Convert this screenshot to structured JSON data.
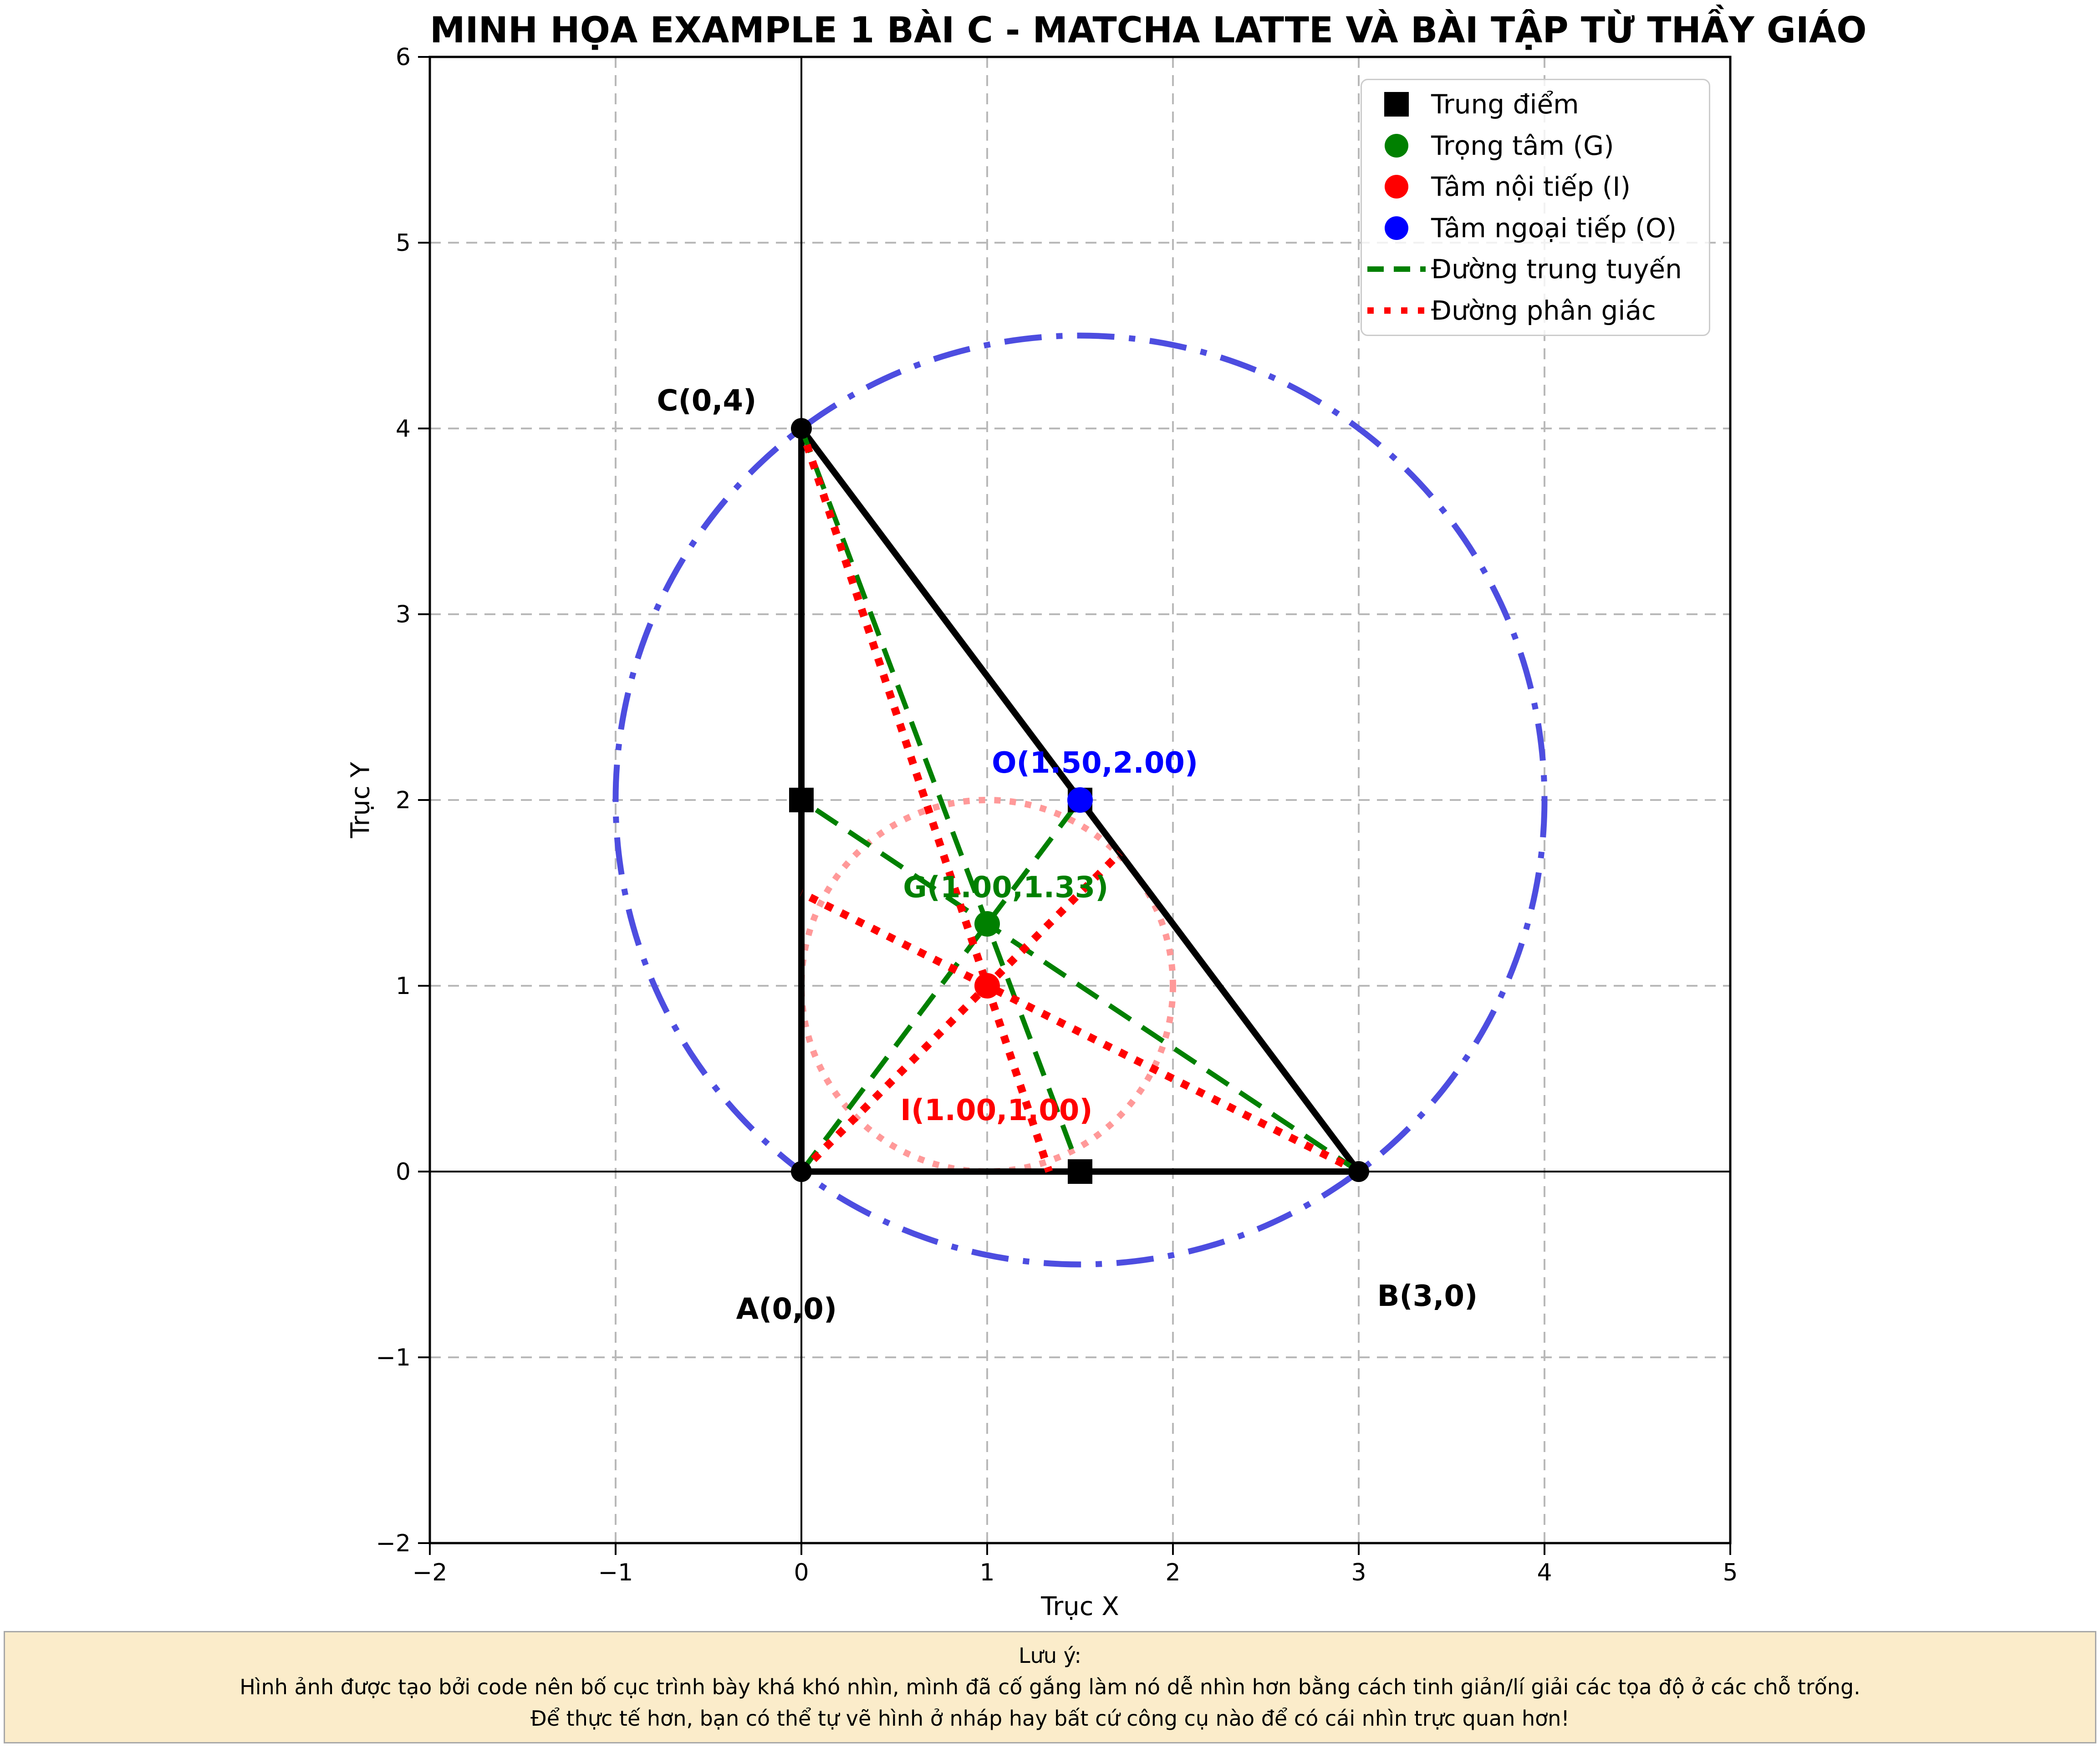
{
  "colors": {
    "black": "#000000",
    "green": "#008000",
    "red": "#ff0000",
    "blue": "#0000ff",
    "circumcircle_blue": "#4d4de0",
    "incircle_pink": "#ff9999",
    "grid": "#b9b9b9",
    "zero_axis": "#000000",
    "note_bg": "#fbecca",
    "note_border": "#a8a8a8",
    "legend_border": "#cccccc"
  },
  "legend": {
    "items": [
      {
        "label": "Trung điểm",
        "marker": "square",
        "color": "#000000"
      },
      {
        "label": "Trọng tâm (G)",
        "marker": "dot",
        "color": "#008000"
      },
      {
        "label": "Tâm nội tiếp (I)",
        "marker": "dot",
        "color": "#ff0000"
      },
      {
        "label": "Tâm ngoại tiếp (O)",
        "marker": "dot",
        "color": "#0000ff"
      },
      {
        "label": "Đường trung tuyến",
        "marker": "dashed-line",
        "color": "#008000"
      },
      {
        "label": "Đường phân giác",
        "marker": "dotted-line",
        "color": "#ff0000"
      }
    ]
  },
  "note": {
    "heading": "Lưu ý:",
    "line1": "Hình ảnh được tạo bởi code nên bố cục trình bày khá khó nhìn, mình đã cố gắng làm nó dễ nhìn hơn bằng cách tinh giản/lí giải các tọa độ ở các chỗ trống.",
    "line2": "Để thực tế hơn, bạn có thể tự vẽ hình ở nháp hay bất cứ công cụ nào để có cái nhìn trực quan hơn!"
  },
  "chart_data": {
    "type": "scatter",
    "title": "MINH HỌA EXAMPLE 1 BÀI C - MATCHA LATTE VÀ BÀI TẬP TỪ THẦY GIÁO",
    "xlabel": "Trục X",
    "ylabel": "Trục Y",
    "xlim": [
      -2,
      5
    ],
    "ylim": [
      -2,
      6
    ],
    "grid": true,
    "legend_position": "upper right",
    "xticks": [
      {
        "v": -2,
        "label": "−2"
      },
      {
        "v": -1,
        "label": "−1"
      },
      {
        "v": 0,
        "label": "0"
      },
      {
        "v": 1,
        "label": "1"
      },
      {
        "v": 2,
        "label": "2"
      },
      {
        "v": 3,
        "label": "3"
      },
      {
        "v": 4,
        "label": "4"
      },
      {
        "v": 5,
        "label": "5"
      }
    ],
    "yticks": [
      {
        "v": -2,
        "label": "−2"
      },
      {
        "v": -1,
        "label": "−1"
      },
      {
        "v": 0,
        "label": "0"
      },
      {
        "v": 1,
        "label": "1"
      },
      {
        "v": 2,
        "label": "2"
      },
      {
        "v": 3,
        "label": "3"
      },
      {
        "v": 4,
        "label": "4"
      },
      {
        "v": 5,
        "label": "5"
      },
      {
        "v": 6,
        "label": "6"
      }
    ],
    "triangle": {
      "vertices": [
        {
          "name": "A",
          "x": 0,
          "y": 0
        },
        {
          "name": "B",
          "x": 3,
          "y": 0
        },
        {
          "name": "C",
          "x": 0,
          "y": 4
        }
      ]
    },
    "vertex_labels": [
      {
        "text": "A(0,0)",
        "x": -0.08,
        "y": -0.75
      },
      {
        "text": "B(3,0)",
        "x": 3.37,
        "y": -0.68
      },
      {
        "text": "C(0,4)",
        "x": -0.51,
        "y": 4.14
      }
    ],
    "midpoints": [
      {
        "x": 1.5,
        "y": 2
      },
      {
        "x": 0,
        "y": 2
      },
      {
        "x": 1.5,
        "y": 0
      }
    ],
    "medians": [
      {
        "x1": 0,
        "y1": 0,
        "x2": 1.5,
        "y2": 2
      },
      {
        "x1": 3,
        "y1": 0,
        "x2": 0,
        "y2": 2
      },
      {
        "x1": 0,
        "y1": 4,
        "x2": 1.5,
        "y2": 0
      }
    ],
    "bisectors": [
      {
        "x1": 0,
        "y1": 0,
        "x2": 1.7143,
        "y2": 1.7143
      },
      {
        "x1": 3,
        "y1": 0,
        "x2": 0,
        "y2": 1.5
      },
      {
        "x1": 0,
        "y1": 4,
        "x2": 1.3333,
        "y2": 0
      }
    ],
    "centers": [
      {
        "name": "centroid",
        "x": 1.0,
        "y": 1.3333,
        "color_key": "green",
        "label": "G(1.00,1.33)",
        "label_x": 1.1,
        "label_y": 1.52
      },
      {
        "name": "incenter",
        "x": 1.0,
        "y": 1.0,
        "color_key": "red",
        "label": "I(1.00,1.00)",
        "label_x": 1.05,
        "label_y": 0.32
      },
      {
        "name": "circumcenter",
        "x": 1.5,
        "y": 2.0,
        "color_key": "blue",
        "label": "O(1.50,2.00)",
        "label_x": 1.58,
        "label_y": 2.19
      }
    ],
    "circumcircle": {
      "cx": 1.5,
      "cy": 2.0,
      "r": 2.5
    },
    "incircle": {
      "cx": 1.0,
      "cy": 1.0,
      "r": 1.0
    }
  }
}
